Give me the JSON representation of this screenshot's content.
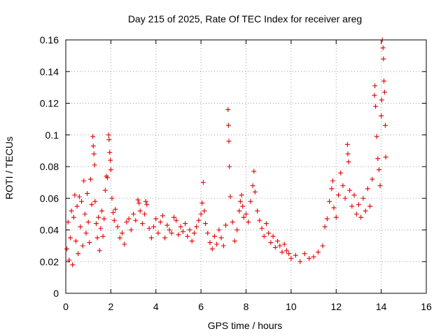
{
  "chart_data": {
    "type": "scatter",
    "title": "Day 215 of 2025, Rate Of TEC Index for receiver areg",
    "xlabel": "GPS time / hours",
    "ylabel": "ROTI / TECUs",
    "xlim": [
      0,
      16
    ],
    "ylim": [
      0,
      0.16
    ],
    "grid": true,
    "series_color": "#e00000",
    "x_ticks": [
      "0",
      "2",
      "4",
      "6",
      "8",
      "10",
      "12",
      "14",
      "16"
    ],
    "y_ticks": [
      "0",
      "0.02",
      "0.04",
      "0.06",
      "0.08",
      "0.1",
      "0.12",
      "0.14",
      "0.16"
    ],
    "x_tick_values": [
      0,
      2,
      4,
      6,
      8,
      10,
      12,
      14,
      16
    ],
    "y_tick_values": [
      0,
      0.02,
      0.04,
      0.06,
      0.08,
      0.1,
      0.12,
      0.14,
      0.16
    ],
    "series": [
      {
        "name": "ROTI",
        "points": [
          [
            0.05,
            0.028
          ],
          [
            0.1,
            0.045
          ],
          [
            0.15,
            0.021
          ],
          [
            0.2,
            0.035
          ],
          [
            0.25,
            0.052
          ],
          [
            0.3,
            0.018
          ],
          [
            0.35,
            0.048
          ],
          [
            0.4,
            0.062
          ],
          [
            0.45,
            0.033
          ],
          [
            0.5,
            0.055
          ],
          [
            0.55,
            0.025
          ],
          [
            0.6,
            0.061
          ],
          [
            0.65,
            0.042
          ],
          [
            0.7,
            0.058
          ],
          [
            0.75,
            0.03
          ],
          [
            0.8,
            0.071
          ],
          [
            0.85,
            0.05
          ],
          [
            0.9,
            0.038
          ],
          [
            0.95,
            0.063
          ],
          [
            1.0,
            0.045
          ],
          [
            1.05,
            0.032
          ],
          [
            1.1,
            0.072
          ],
          [
            1.15,
            0.056
          ],
          [
            1.2,
            0.099
          ],
          [
            1.22,
            0.093
          ],
          [
            1.25,
            0.088
          ],
          [
            1.28,
            0.081
          ],
          [
            1.3,
            0.058
          ],
          [
            1.35,
            0.044
          ],
          [
            1.4,
            0.035
          ],
          [
            1.45,
            0.048
          ],
          [
            1.5,
            0.027
          ],
          [
            1.55,
            0.041
          ],
          [
            1.6,
            0.052
          ],
          [
            1.65,
            0.036
          ],
          [
            1.7,
            0.047
          ],
          [
            1.75,
            0.065
          ],
          [
            1.8,
            0.074
          ],
          [
            1.85,
            0.073
          ],
          [
            1.9,
            0.1
          ],
          [
            1.92,
            0.097
          ],
          [
            1.95,
            0.089
          ],
          [
            1.98,
            0.084
          ],
          [
            2.0,
            0.078
          ],
          [
            2.05,
            0.06
          ],
          [
            2.1,
            0.051
          ],
          [
            2.15,
            0.046
          ],
          [
            2.2,
            0.053
          ],
          [
            2.3,
            0.042
          ],
          [
            2.4,
            0.035
          ],
          [
            2.5,
            0.038
          ],
          [
            2.6,
            0.031
          ],
          [
            2.7,
            0.045
          ],
          [
            2.8,
            0.047
          ],
          [
            2.9,
            0.04
          ],
          [
            3.0,
            0.05
          ],
          [
            3.1,
            0.046
          ],
          [
            3.2,
            0.059
          ],
          [
            3.25,
            0.057
          ],
          [
            3.3,
            0.052
          ],
          [
            3.4,
            0.044
          ],
          [
            3.5,
            0.05
          ],
          [
            3.55,
            0.058
          ],
          [
            3.6,
            0.056
          ],
          [
            3.7,
            0.041
          ],
          [
            3.8,
            0.035
          ],
          [
            3.9,
            0.042
          ],
          [
            4.0,
            0.047
          ],
          [
            4.1,
            0.038
          ],
          [
            4.2,
            0.045
          ],
          [
            4.3,
            0.049
          ],
          [
            4.4,
            0.035
          ],
          [
            4.5,
            0.043
          ],
          [
            4.6,
            0.04
          ],
          [
            4.7,
            0.038
          ],
          [
            4.8,
            0.048
          ],
          [
            4.9,
            0.046
          ],
          [
            5.0,
            0.037
          ],
          [
            5.1,
            0.042
          ],
          [
            5.2,
            0.039
          ],
          [
            5.3,
            0.044
          ],
          [
            5.4,
            0.036
          ],
          [
            5.5,
            0.04
          ],
          [
            5.6,
            0.033
          ],
          [
            5.7,
            0.038
          ],
          [
            5.8,
            0.042
          ],
          [
            5.9,
            0.046
          ],
          [
            6.0,
            0.05
          ],
          [
            6.05,
            0.057
          ],
          [
            6.1,
            0.07
          ],
          [
            6.15,
            0.052
          ],
          [
            6.2,
            0.044
          ],
          [
            6.3,
            0.038
          ],
          [
            6.4,
            0.032
          ],
          [
            6.5,
            0.028
          ],
          [
            6.6,
            0.036
          ],
          [
            6.7,
            0.031
          ],
          [
            6.8,
            0.04
          ],
          [
            6.9,
            0.035
          ],
          [
            7.0,
            0.03
          ],
          [
            7.1,
            0.043
          ],
          [
            7.2,
            0.116
          ],
          [
            7.22,
            0.106
          ],
          [
            7.24,
            0.096
          ],
          [
            7.26,
            0.08
          ],
          [
            7.3,
            0.061
          ],
          [
            7.4,
            0.045
          ],
          [
            7.5,
            0.033
          ],
          [
            7.6,
            0.04
          ],
          [
            7.7,
            0.052
          ],
          [
            7.75,
            0.058
          ],
          [
            7.8,
            0.062
          ],
          [
            7.85,
            0.055
          ],
          [
            7.9,
            0.048
          ],
          [
            8.0,
            0.05
          ],
          [
            8.1,
            0.045
          ],
          [
            8.2,
            0.058
          ],
          [
            8.3,
            0.068
          ],
          [
            8.35,
            0.077
          ],
          [
            8.4,
            0.064
          ],
          [
            8.5,
            0.052
          ],
          [
            8.6,
            0.046
          ],
          [
            8.7,
            0.041
          ],
          [
            8.8,
            0.036
          ],
          [
            8.9,
            0.044
          ],
          [
            9.0,
            0.038
          ],
          [
            9.1,
            0.032
          ],
          [
            9.2,
            0.036
          ],
          [
            9.3,
            0.029
          ],
          [
            9.4,
            0.033
          ],
          [
            9.5,
            0.03
          ],
          [
            9.6,
            0.026
          ],
          [
            9.7,
            0.031
          ],
          [
            9.8,
            0.027
          ],
          [
            9.9,
            0.025
          ],
          [
            10.0,
            0.022
          ],
          [
            10.2,
            0.024
          ],
          [
            10.4,
            0.02
          ],
          [
            10.6,
            0.025
          ],
          [
            10.8,
            0.022
          ],
          [
            11.0,
            0.023
          ],
          [
            11.2,
            0.026
          ],
          [
            11.4,
            0.03
          ],
          [
            11.5,
            0.042
          ],
          [
            11.6,
            0.047
          ],
          [
            11.7,
            0.058
          ],
          [
            11.8,
            0.066
          ],
          [
            11.85,
            0.071
          ],
          [
            11.9,
            0.054
          ],
          [
            12.0,
            0.048
          ],
          [
            12.1,
            0.062
          ],
          [
            12.2,
            0.076
          ],
          [
            12.3,
            0.068
          ],
          [
            12.4,
            0.06
          ],
          [
            12.5,
            0.094
          ],
          [
            12.52,
            0.088
          ],
          [
            12.55,
            0.083
          ],
          [
            12.6,
            0.065
          ],
          [
            12.7,
            0.055
          ],
          [
            12.8,
            0.062
          ],
          [
            12.9,
            0.05
          ],
          [
            13.0,
            0.056
          ],
          [
            13.1,
            0.048
          ],
          [
            13.2,
            0.06
          ],
          [
            13.3,
            0.052
          ],
          [
            13.4,
            0.066
          ],
          [
            13.5,
            0.055
          ],
          [
            13.6,
            0.072
          ],
          [
            13.7,
            0.125
          ],
          [
            13.72,
            0.131
          ],
          [
            13.75,
            0.118
          ],
          [
            13.8,
            0.099
          ],
          [
            13.85,
            0.085
          ],
          [
            13.9,
            0.078
          ],
          [
            13.95,
            0.068
          ],
          [
            14.0,
            0.112
          ],
          [
            14.02,
            0.122
          ],
          [
            14.05,
            0.16
          ],
          [
            14.08,
            0.155
          ],
          [
            14.1,
            0.148
          ],
          [
            14.12,
            0.134
          ],
          [
            14.15,
            0.127
          ],
          [
            14.18,
            0.106
          ],
          [
            14.2,
            0.086
          ]
        ]
      }
    ]
  }
}
